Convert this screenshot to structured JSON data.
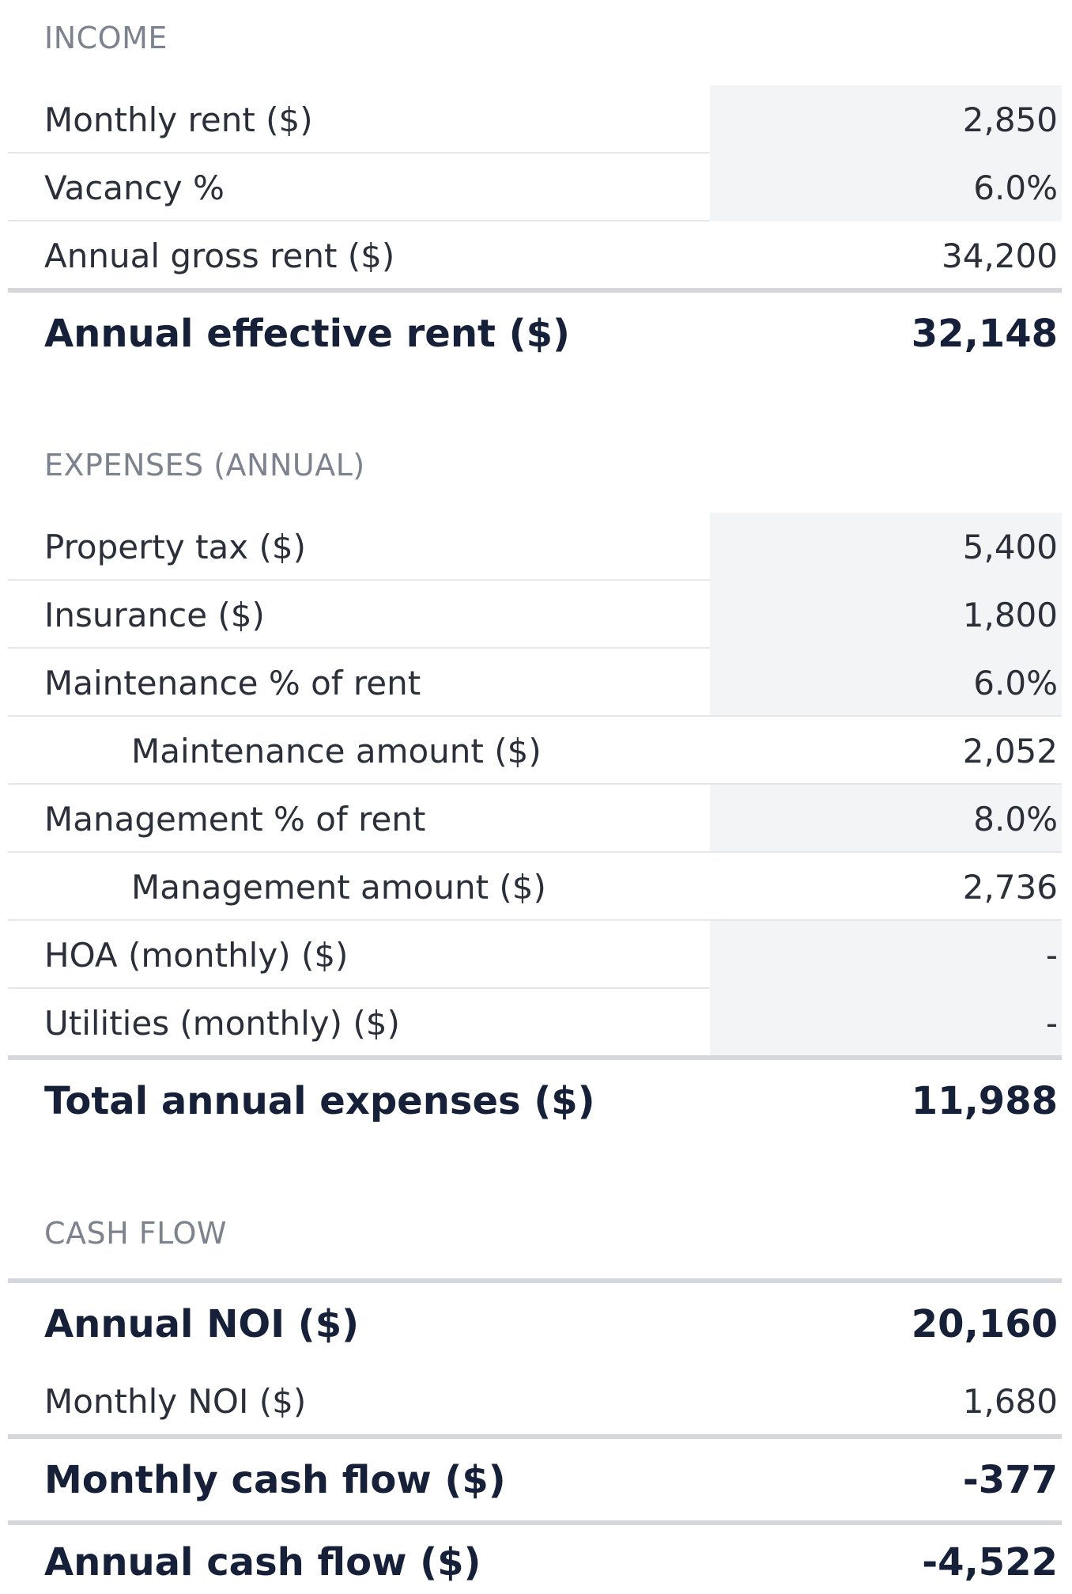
{
  "income": {
    "header": "INCOME",
    "rows": [
      {
        "label": "Monthly rent ($)",
        "value": "2,850"
      },
      {
        "label": "Vacancy %",
        "value": "6.0%"
      },
      {
        "label": "Annual gross rent ($)",
        "value": "34,200"
      }
    ],
    "total": {
      "label": "Annual effective rent ($)",
      "value": "32,148"
    }
  },
  "expenses": {
    "header": "EXPENSES (ANNUAL)",
    "rows": [
      {
        "label": "Property tax ($)",
        "value": "5,400"
      },
      {
        "label": "Insurance ($)",
        "value": "1,800"
      },
      {
        "label": "Maintenance % of rent",
        "value": "6.0%"
      },
      {
        "label": "Maintenance amount ($)",
        "value": "2,052"
      },
      {
        "label": "Management % of rent",
        "value": "8.0%"
      },
      {
        "label": "Management amount ($)",
        "value": "2,736"
      },
      {
        "label": "HOA (monthly) ($)",
        "value": "-"
      },
      {
        "label": "Utilities (monthly) ($)",
        "value": "-"
      }
    ],
    "total": {
      "label": "Total annual expenses ($)",
      "value": "11,988"
    }
  },
  "cash_flow": {
    "header": "CASH FLOW",
    "annual_noi": {
      "label": "Annual NOI ($)",
      "value": "20,160"
    },
    "monthly_noi": {
      "label": "Monthly NOI ($)",
      "value": "1,680"
    },
    "monthly_cash_flow": {
      "label": "Monthly cash flow ($)",
      "value": "-377"
    },
    "annual_cash_flow": {
      "label": "Annual cash flow ($)",
      "value": "-4,522"
    }
  }
}
